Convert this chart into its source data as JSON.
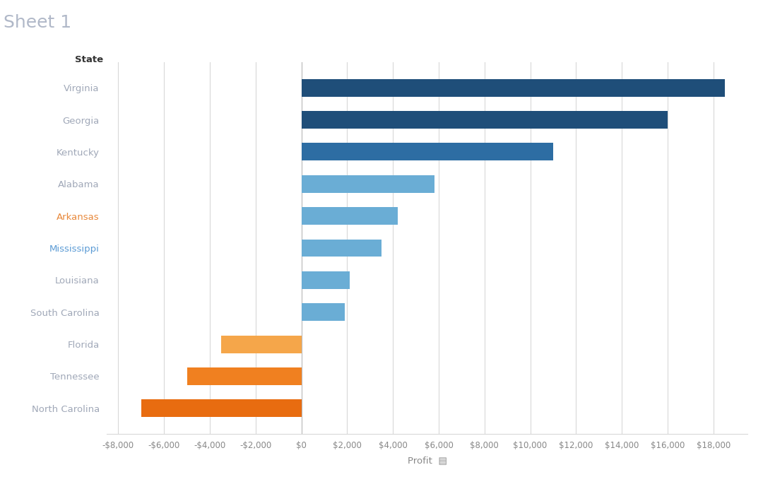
{
  "states": [
    "Virginia",
    "Georgia",
    "Kentucky",
    "Alabama",
    "Arkansas",
    "Mississippi",
    "Louisiana",
    "South Carolina",
    "Florida",
    "Tennessee",
    "North Carolina"
  ],
  "values": [
    18500,
    16000,
    11000,
    5800,
    4200,
    3500,
    2100,
    1900,
    -3500,
    -5000,
    -7000
  ],
  "colors": [
    "#1f4e79",
    "#1f4e79",
    "#2d6da3",
    "#6aadd5",
    "#6aadd5",
    "#6aadd5",
    "#6aadd5",
    "#6aadd5",
    "#f5a64a",
    "#f08020",
    "#e86c10"
  ],
  "label_colors": [
    "#a0a8b8",
    "#a0a8b8",
    "#a0a8b8",
    "#a0a8b8",
    "#e8883a",
    "#5b9bd5",
    "#a0a8b8",
    "#a0a8b8",
    "#a0a8b8",
    "#a0a8b8",
    "#a0a8b8"
  ],
  "title": "Sheet 1",
  "xlabel": "Profit",
  "ylabel": "State",
  "xlim": [
    -8500,
    19500
  ],
  "xticks": [
    -8000,
    -6000,
    -4000,
    -2000,
    0,
    2000,
    4000,
    6000,
    8000,
    10000,
    12000,
    14000,
    16000,
    18000
  ],
  "background_color": "#ffffff",
  "grid_color": "#d8d8d8"
}
